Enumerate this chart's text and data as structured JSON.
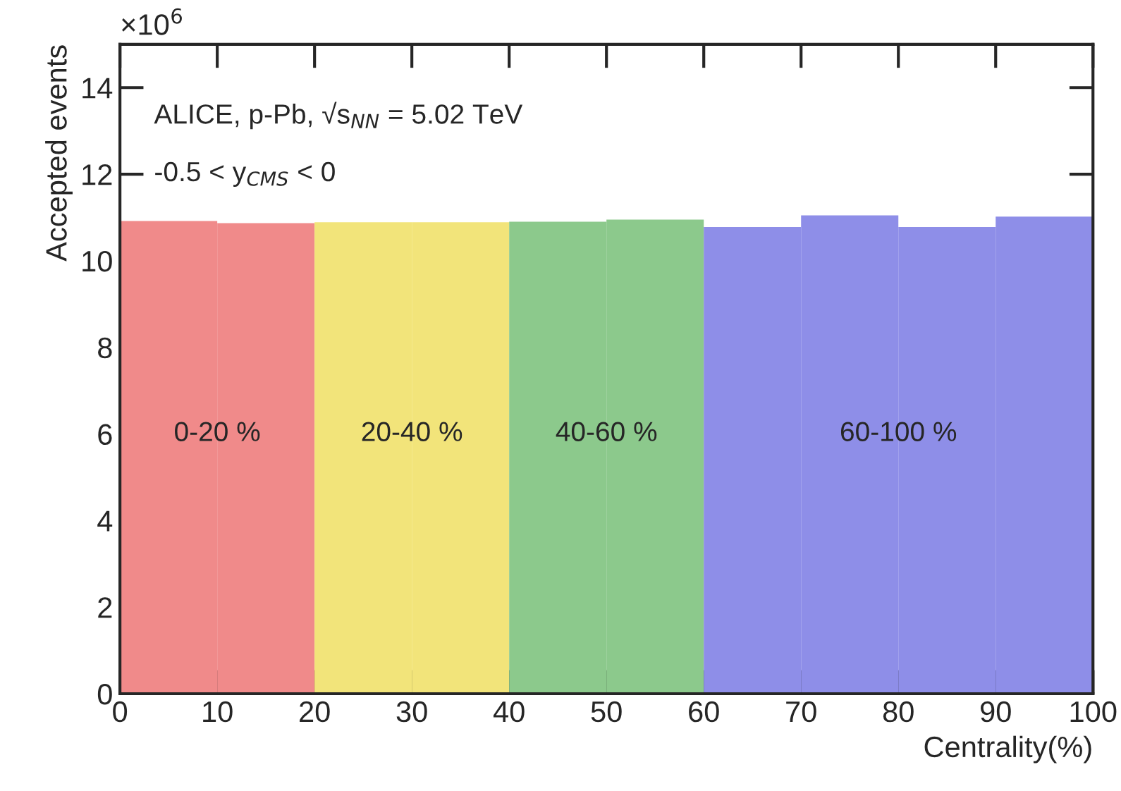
{
  "chart_data": {
    "type": "histogram",
    "xlabel": "Centrality(%)",
    "ylabel": "Accepted events",
    "bins": [
      0,
      10,
      20,
      30,
      40,
      50,
      60,
      70,
      80,
      90,
      100
    ],
    "values": [
      10.92,
      10.87,
      10.89,
      10.89,
      10.9,
      10.95,
      10.78,
      11.05,
      10.78,
      11.02
    ],
    "colors": [
      "#f08a8a",
      "#f08a8a",
      "#f2e47a",
      "#f2e47a",
      "#8cc98c",
      "#8cc98c",
      "#8e8ee8",
      "#8e8ee8",
      "#8e8ee8",
      "#8e8ee8"
    ],
    "xlim": [
      0,
      100
    ],
    "ylim": [
      0,
      15
    ],
    "xticks": [
      0,
      10,
      20,
      30,
      40,
      50,
      60,
      70,
      80,
      90,
      100
    ],
    "yticks": [
      0,
      2,
      4,
      6,
      8,
      10,
      12,
      14
    ],
    "grid": false,
    "annotations": [
      "×10$^{6}$",
      "ALICE, p-Pb, √s$_{NN}$ = 5.02 TeV",
      "-0.5 < y$_{CMS}$ < 0",
      "0-20 %",
      "20-40 %",
      "40-60 %",
      "60-100 %"
    ]
  }
}
